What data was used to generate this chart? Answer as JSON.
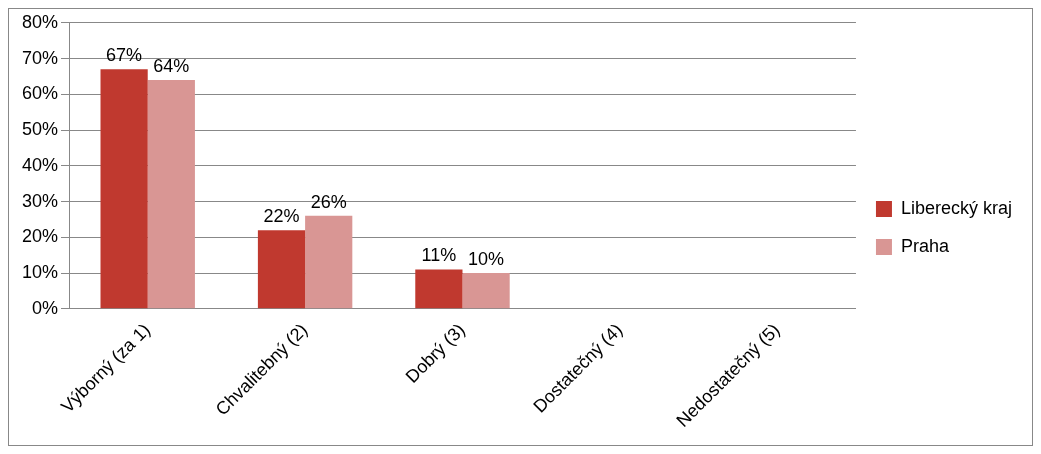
{
  "chart_data": {
    "type": "bar",
    "categories": [
      "Výborný (za 1)",
      "Chvalitebný (2)",
      "Dobrý (3)",
      "Dostatečný (4)",
      "Nedostatečný (5)"
    ],
    "series": [
      {
        "name": "Liberecký kraj",
        "color": "#c0392f",
        "values": [
          67,
          22,
          11,
          null,
          null
        ],
        "value_labels": [
          "67%",
          "22%",
          "11%",
          null,
          null
        ]
      },
      {
        "name": "Praha",
        "color": "#d99694",
        "values": [
          64,
          26,
          10,
          null,
          null
        ],
        "value_labels": [
          "64%",
          "26%",
          "10%",
          null,
          null
        ]
      }
    ],
    "ylim": [
      0,
      80
    ],
    "yticks": [
      {
        "value": 0,
        "label": "0%"
      },
      {
        "value": 10,
        "label": "10%"
      },
      {
        "value": 20,
        "label": "20%"
      },
      {
        "value": 30,
        "label": "30%"
      },
      {
        "value": 40,
        "label": "40%"
      },
      {
        "value": 50,
        "label": "50%"
      },
      {
        "value": 60,
        "label": "60%"
      },
      {
        "value": 70,
        "label": "70%"
      },
      {
        "value": 80,
        "label": "80%"
      }
    ],
    "grid": "y",
    "legend": "right"
  }
}
